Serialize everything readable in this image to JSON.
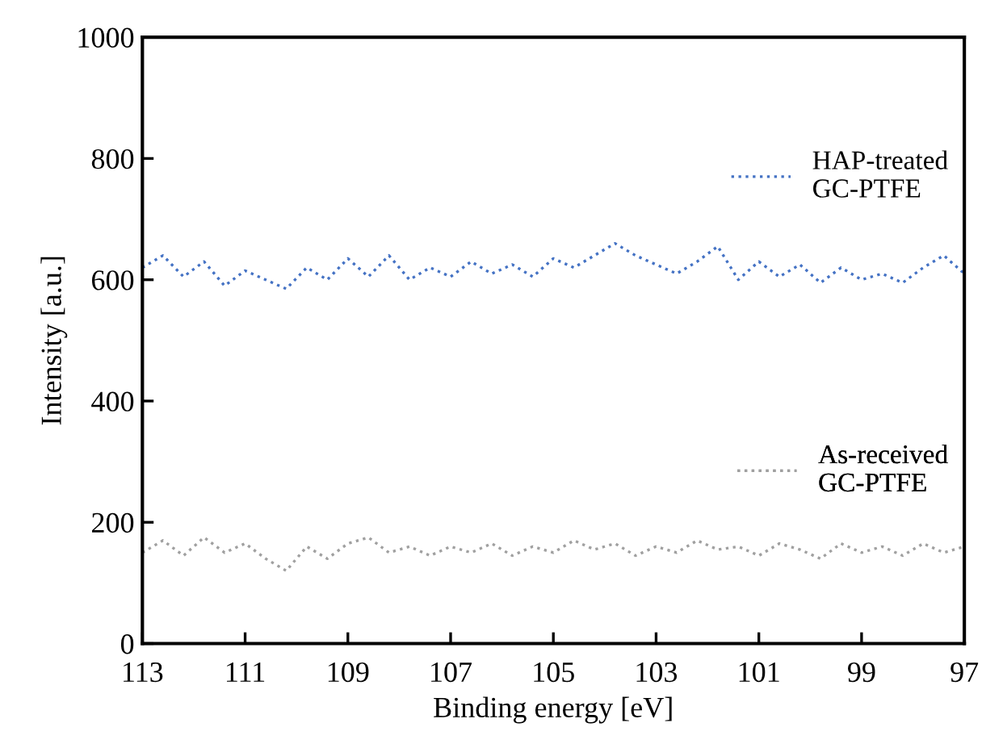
{
  "chart_data": {
    "type": "line",
    "xlabel": "Binding energy [eV]",
    "ylabel": "Intensity [a.u.]",
    "x": [
      113,
      112.6,
      112.2,
      111.8,
      111.4,
      111.0,
      110.6,
      110.2,
      109.8,
      109.4,
      109.0,
      108.6,
      108.2,
      107.8,
      107.4,
      107.0,
      106.6,
      106.2,
      105.8,
      105.4,
      105.0,
      104.6,
      104.2,
      103.8,
      103.4,
      103.0,
      102.6,
      102.2,
      101.8,
      101.4,
      101.0,
      100.6,
      100.2,
      99.8,
      99.4,
      99.0,
      98.6,
      98.2,
      97.8,
      97.4,
      97.0
    ],
    "series": [
      {
        "name": "HAP-treated\nGC-PTFE",
        "color": "#4472c4",
        "values": [
          620,
          640,
          605,
          630,
          590,
          615,
          600,
          585,
          620,
          600,
          635,
          605,
          640,
          600,
          620,
          605,
          630,
          610,
          625,
          605,
          635,
          620,
          640,
          660,
          640,
          625,
          610,
          630,
          655,
          600,
          630,
          605,
          625,
          595,
          620,
          600,
          610,
          595,
          620,
          640,
          610
        ]
      },
      {
        "name": "As-received\nGC-PTFE",
        "color": "#a0a0a0",
        "values": [
          150,
          170,
          145,
          175,
          150,
          165,
          140,
          120,
          160,
          140,
          165,
          175,
          150,
          160,
          145,
          160,
          150,
          165,
          145,
          160,
          150,
          170,
          155,
          165,
          145,
          160,
          150,
          170,
          155,
          160,
          145,
          165,
          155,
          140,
          165,
          150,
          160,
          145,
          165,
          150,
          160
        ]
      }
    ],
    "xlim": [
      113,
      97
    ],
    "xticks": [
      113,
      111,
      109,
      107,
      105,
      103,
      101,
      99,
      97
    ],
    "ylim": [
      0,
      1000
    ],
    "yticks": [
      0,
      200,
      400,
      600,
      800,
      1000
    ],
    "grid": false,
    "legend": "right",
    "line_style": "dotted",
    "marker": "none"
  }
}
